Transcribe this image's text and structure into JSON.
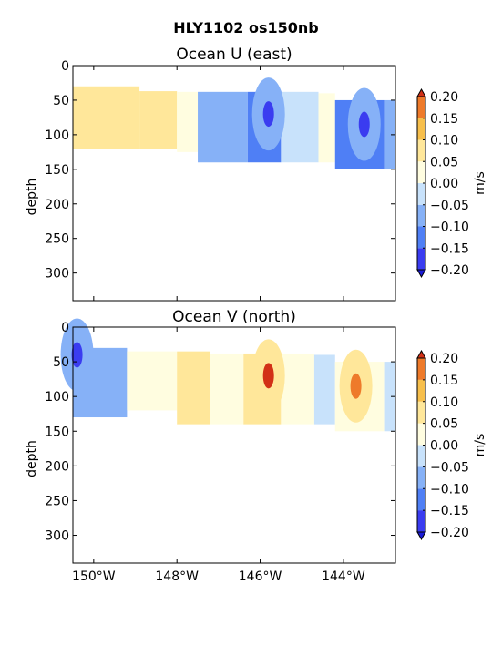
{
  "figure": {
    "title": "HLY1102 os150nb"
  },
  "colors": {
    "levels": [
      -0.2,
      -0.15,
      -0.1,
      -0.05,
      0.0,
      0.05,
      0.1,
      0.15,
      0.2
    ],
    "bands": [
      "#3a3cf0",
      "#4f7ff5",
      "#86b1f7",
      "#c8e2fb",
      "#fffde0",
      "#ffe79a",
      "#f7bf4c",
      "#ee7a2a"
    ],
    "under": "#1b1bd6",
    "over": "#d23016"
  },
  "chart_data": [
    {
      "type": "heatmap",
      "title": "Ocean U (east)",
      "xlabel": "",
      "ylabel": "depth",
      "xlim": [
        -150.5,
        -142.75
      ],
      "ylim": [
        340,
        0
      ],
      "xticks": [
        -150,
        -148,
        -146,
        -144
      ],
      "xtick_labels": [
        "150°W",
        "148°W",
        "146°W",
        "144°W"
      ],
      "yticks": [
        0,
        50,
        100,
        150,
        200,
        250,
        300
      ],
      "colorbar": {
        "label": "m/s",
        "ticks": [
          "0.20",
          "0.15",
          "0.10",
          "0.05",
          "0.00",
          "−0.05",
          "−0.10",
          "−0.15",
          "−0.20"
        ]
      },
      "segments": [
        {
          "x0": -150.5,
          "x1": -148.9,
          "top": 30,
          "bottom": 120,
          "value": 0.09
        },
        {
          "x0": -148.9,
          "x1": -148.0,
          "top": 37,
          "bottom": 120,
          "value": 0.07
        },
        {
          "x0": -148.0,
          "x1": -147.5,
          "top": 38,
          "bottom": 125,
          "value": 0.02
        },
        {
          "x0": -147.5,
          "x1": -146.3,
          "top": 38,
          "bottom": 140,
          "value": -0.07
        },
        {
          "x0": -146.3,
          "x1": -145.5,
          "top": 38,
          "bottom": 140,
          "value": -0.12
        },
        {
          "x0": -145.5,
          "x1": -144.6,
          "top": 38,
          "bottom": 140,
          "value": -0.05
        },
        {
          "x0": -144.6,
          "x1": -144.2,
          "top": 40,
          "bottom": 140,
          "value": 0.03
        },
        {
          "x0": -144.2,
          "x1": -143.0,
          "top": 50,
          "bottom": 150,
          "value": -0.12
        },
        {
          "x0": -143.0,
          "x1": -142.75,
          "top": 50,
          "bottom": 150,
          "value": -0.07
        }
      ],
      "features": [
        {
          "x": -145.8,
          "depth": 70,
          "value": -0.2
        },
        {
          "x": -143.5,
          "depth": 85,
          "value": -0.2
        }
      ]
    },
    {
      "type": "heatmap",
      "title": "Ocean V (north)",
      "xlabel": "",
      "ylabel": "depth",
      "xlim": [
        -150.5,
        -142.75
      ],
      "ylim": [
        340,
        0
      ],
      "xticks": [
        -150,
        -148,
        -146,
        -144
      ],
      "xtick_labels": [
        "150°W",
        "148°W",
        "146°W",
        "144°W"
      ],
      "yticks": [
        0,
        50,
        100,
        150,
        200,
        250,
        300
      ],
      "colorbar": {
        "label": "m/s",
        "ticks": [
          "0.20",
          "0.15",
          "0.10",
          "0.05",
          "0.00",
          "−0.05",
          "−0.10",
          "−0.15",
          "−0.20"
        ]
      },
      "segments": [
        {
          "x0": -150.5,
          "x1": -149.2,
          "top": 30,
          "bottom": 130,
          "value": -0.09
        },
        {
          "x0": -149.2,
          "x1": -148.0,
          "top": 35,
          "bottom": 120,
          "value": 0.01
        },
        {
          "x0": -148.0,
          "x1": -147.2,
          "top": 35,
          "bottom": 140,
          "value": 0.06
        },
        {
          "x0": -147.2,
          "x1": -146.4,
          "top": 38,
          "bottom": 140,
          "value": 0.02
        },
        {
          "x0": -146.4,
          "x1": -145.5,
          "top": 38,
          "bottom": 140,
          "value": 0.07
        },
        {
          "x0": -145.5,
          "x1": -144.7,
          "top": 38,
          "bottom": 140,
          "value": 0.02
        },
        {
          "x0": -144.7,
          "x1": -144.2,
          "top": 40,
          "bottom": 140,
          "value": -0.03
        },
        {
          "x0": -144.2,
          "x1": -143.0,
          "top": 50,
          "bottom": 150,
          "value": 0.04
        },
        {
          "x0": -143.0,
          "x1": -142.75,
          "top": 50,
          "bottom": 150,
          "value": -0.03
        }
      ],
      "features": [
        {
          "x": -145.8,
          "depth": 70,
          "value": 0.2
        },
        {
          "x": -143.7,
          "depth": 85,
          "value": 0.15
        },
        {
          "x": -150.4,
          "depth": 40,
          "value": -0.2
        }
      ]
    }
  ]
}
